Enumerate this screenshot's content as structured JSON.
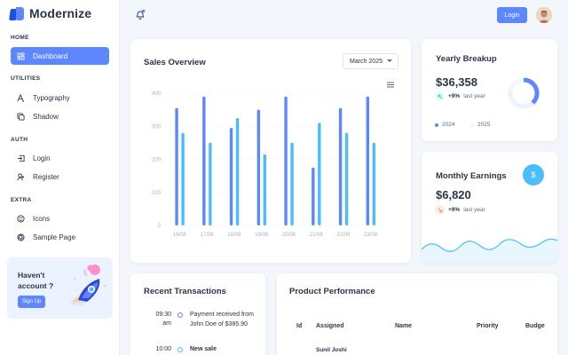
{
  "brand": {
    "name": "Modernize"
  },
  "sidebar": {
    "sections": [
      {
        "caption": "HOME",
        "items": [
          {
            "label": "Dashboard",
            "icon": "layout-dashboard-icon",
            "active": true
          }
        ]
      },
      {
        "caption": "UTILITIES",
        "items": [
          {
            "label": "Typography",
            "icon": "typography-icon"
          },
          {
            "label": "Shadow",
            "icon": "copy-icon"
          }
        ]
      },
      {
        "caption": "AUTH",
        "items": [
          {
            "label": "Login",
            "icon": "login-icon"
          },
          {
            "label": "Register",
            "icon": "user-plus-icon"
          }
        ]
      },
      {
        "caption": "EXTRA",
        "items": [
          {
            "label": "Icons",
            "icon": "mood-happy-icon"
          },
          {
            "label": "Sample Page",
            "icon": "aperture-icon"
          }
        ]
      }
    ],
    "promo": {
      "text": "Haven't account ?",
      "button": "Sign Up"
    }
  },
  "header": {
    "login_label": "Login"
  },
  "sales_overview": {
    "title": "Sales Overview",
    "month": "March 2025"
  },
  "chart_data": {
    "type": "bar",
    "categories": [
      "16/08",
      "17/08",
      "18/08",
      "19/08",
      "20/08",
      "21/08",
      "22/08",
      "23/08"
    ],
    "series": [
      {
        "values": [
          355,
          390,
          295,
          350,
          390,
          175,
          355,
          390
        ],
        "color": "#5d87ff"
      },
      {
        "values": [
          280,
          250,
          325,
          215,
          250,
          310,
          280,
          250
        ],
        "color": "#49beff"
      }
    ],
    "yticks": [
      0,
      100,
      200,
      300,
      400
    ],
    "ylim": [
      0,
      400
    ]
  },
  "yearly_breakup": {
    "title": "Yearly Breakup",
    "amount": "$36,358",
    "percent": "+9%",
    "period": "last year",
    "legend": [
      "2024",
      "2025"
    ],
    "donut": {
      "values": [
        38,
        40,
        22
      ],
      "colors": [
        "#5d87ff",
        "#ecf2ff",
        "#f3f6fa"
      ]
    }
  },
  "monthly_earnings": {
    "title": "Monthly Earnings",
    "amount": "$6,820",
    "percent": "+9%",
    "period": "last year",
    "badge": "$"
  },
  "recent_transactions": {
    "title": "Recent Transactions",
    "items": [
      {
        "time": "09:30 am",
        "text": "Payment received from John Doe of $385.90"
      },
      {
        "time": "10:00",
        "text": "New sale"
      }
    ]
  },
  "product_performance": {
    "title": "Product Performance",
    "columns": [
      "Id",
      "Assigned",
      "Name",
      "Priority",
      "Budge"
    ],
    "first_row": {
      "assigned": "Sunil Joshi"
    }
  },
  "colors": {
    "primary": "#5d87ff",
    "secondary": "#49beff",
    "success": "#13deb9",
    "error": "#fa896b"
  }
}
